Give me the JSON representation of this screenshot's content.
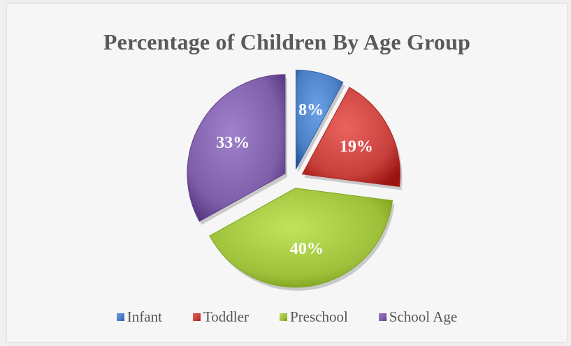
{
  "chart_data": {
    "type": "pie",
    "title": "Percentage of Children By Age Group",
    "categories": [
      "Infant",
      "Toddler",
      "Preschool",
      "School Age"
    ],
    "values": [
      8,
      19,
      40,
      33
    ],
    "labels": [
      "8%",
      "19%",
      "40%",
      "33%"
    ],
    "colors": [
      "#4a7ec4",
      "#c8403c",
      "#9dc03a",
      "#7e5ea8"
    ],
    "exploded": true,
    "legend_position": "bottom"
  }
}
